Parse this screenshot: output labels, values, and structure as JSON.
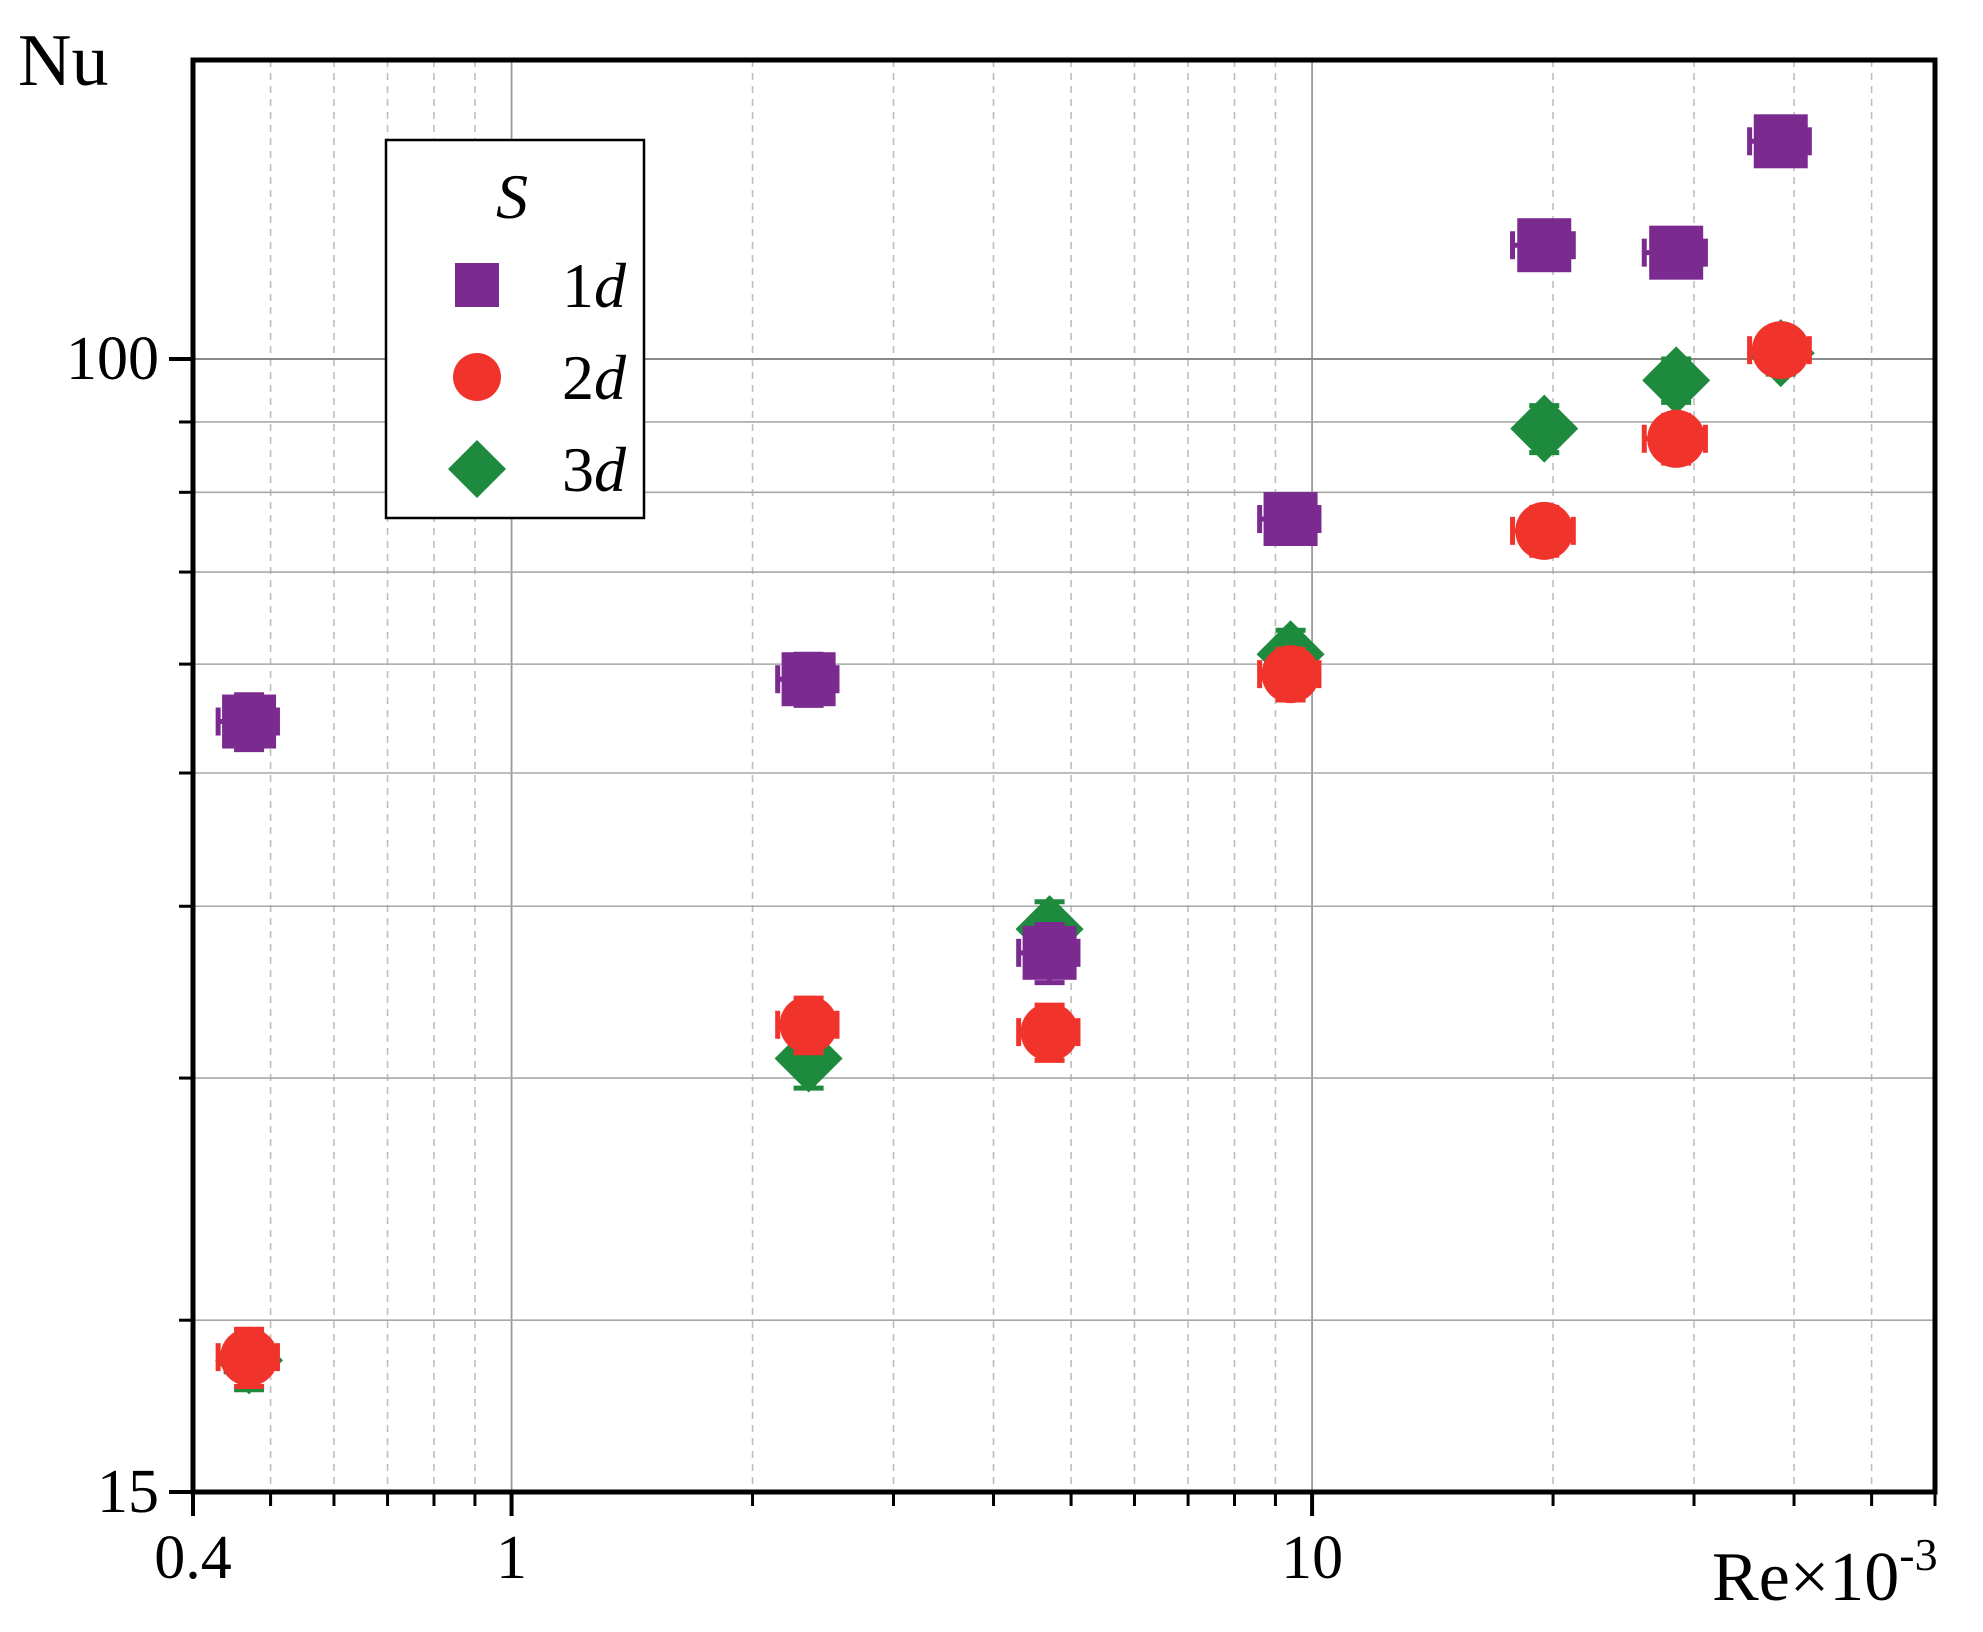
{
  "chart_data": {
    "type": "scatter",
    "x_scale": "log",
    "y_scale": "log",
    "xlabel": "Re×10",
    "xlabel_exponent": "-3",
    "ylabel": "Nu",
    "xlim": [
      0.4,
      60
    ],
    "ylim": [
      15,
      165
    ],
    "x_ticks": [
      {
        "value": 0.4,
        "label": "0.4"
      },
      {
        "value": 1,
        "label": "1"
      },
      {
        "value": 10,
        "label": "10"
      }
    ],
    "y_ticks": [
      {
        "value": 15,
        "label": "15"
      },
      {
        "value": 100,
        "label": "100"
      }
    ],
    "grid": true,
    "legend": {
      "title": "S",
      "position": "top-left",
      "entries": [
        {
          "marker": "square",
          "number": "1",
          "unit": "d",
          "color": "#7b2a90"
        },
        {
          "marker": "circle",
          "number": "2",
          "unit": "d",
          "color": "#f0342c"
        },
        {
          "marker": "diamond",
          "number": "3",
          "unit": "d",
          "color": "#1e8a3e"
        }
      ]
    },
    "series": [
      {
        "name": "1d",
        "marker": "square",
        "color": "#7b2a90",
        "points": [
          {
            "x": 0.47,
            "y": 54.5,
            "xerr": 0.04,
            "yerr": 2.5
          },
          {
            "x": 2.35,
            "y": 58.5,
            "xerr": 0.2,
            "yerr": 2.5
          },
          {
            "x": 4.7,
            "y": 37.0,
            "xerr": 0.4,
            "yerr": 1.8
          },
          {
            "x": 9.4,
            "y": 76.5,
            "xerr": 0.8,
            "yerr": 3.0
          },
          {
            "x": 19.5,
            "y": 121.0,
            "xerr": 1.7,
            "yerr": 4.0
          },
          {
            "x": 28.5,
            "y": 119.5,
            "xerr": 2.5,
            "yerr": 4.0
          },
          {
            "x": 38.5,
            "y": 144.0,
            "xerr": 3.3,
            "yerr": 4.5
          }
        ]
      },
      {
        "name": "2d",
        "marker": "circle",
        "color": "#f0342c",
        "points": [
          {
            "x": 0.47,
            "y": 18.8,
            "xerr": 0.04,
            "yerr": 0.9
          },
          {
            "x": 2.35,
            "y": 32.8,
            "xerr": 0.2,
            "yerr": 1.5
          },
          {
            "x": 4.7,
            "y": 32.4,
            "xerr": 0.4,
            "yerr": 1.5
          },
          {
            "x": 9.4,
            "y": 59.0,
            "xerr": 0.8,
            "yerr": 2.5
          },
          {
            "x": 19.5,
            "y": 75.0,
            "xerr": 1.7,
            "yerr": 3.0
          },
          {
            "x": 28.5,
            "y": 87.5,
            "xerr": 2.5,
            "yerr": 3.5
          },
          {
            "x": 38.5,
            "y": 101.5,
            "xerr": 3.3,
            "yerr": 3.5
          }
        ]
      },
      {
        "name": "3d",
        "marker": "diamond",
        "color": "#1e8a3e",
        "points": [
          {
            "x": 0.47,
            "y": 18.7,
            "xerr": 0.03,
            "yerr": 0.9
          },
          {
            "x": 2.35,
            "y": 31.0,
            "xerr": 0.03,
            "yerr": 1.5
          },
          {
            "x": 4.7,
            "y": 38.5,
            "xerr": 0.03,
            "yerr": 1.8
          },
          {
            "x": 9.4,
            "y": 61.0,
            "xerr": 0.03,
            "yerr": 2.5
          },
          {
            "x": 19.5,
            "y": 89.0,
            "xerr": 0.03,
            "yerr": 3.5
          },
          {
            "x": 28.5,
            "y": 96.5,
            "xerr": 0.03,
            "yerr": 3.5
          },
          {
            "x": 38.5,
            "y": 101.0,
            "xerr": 0.03,
            "yerr": 3.5
          }
        ]
      }
    ]
  }
}
